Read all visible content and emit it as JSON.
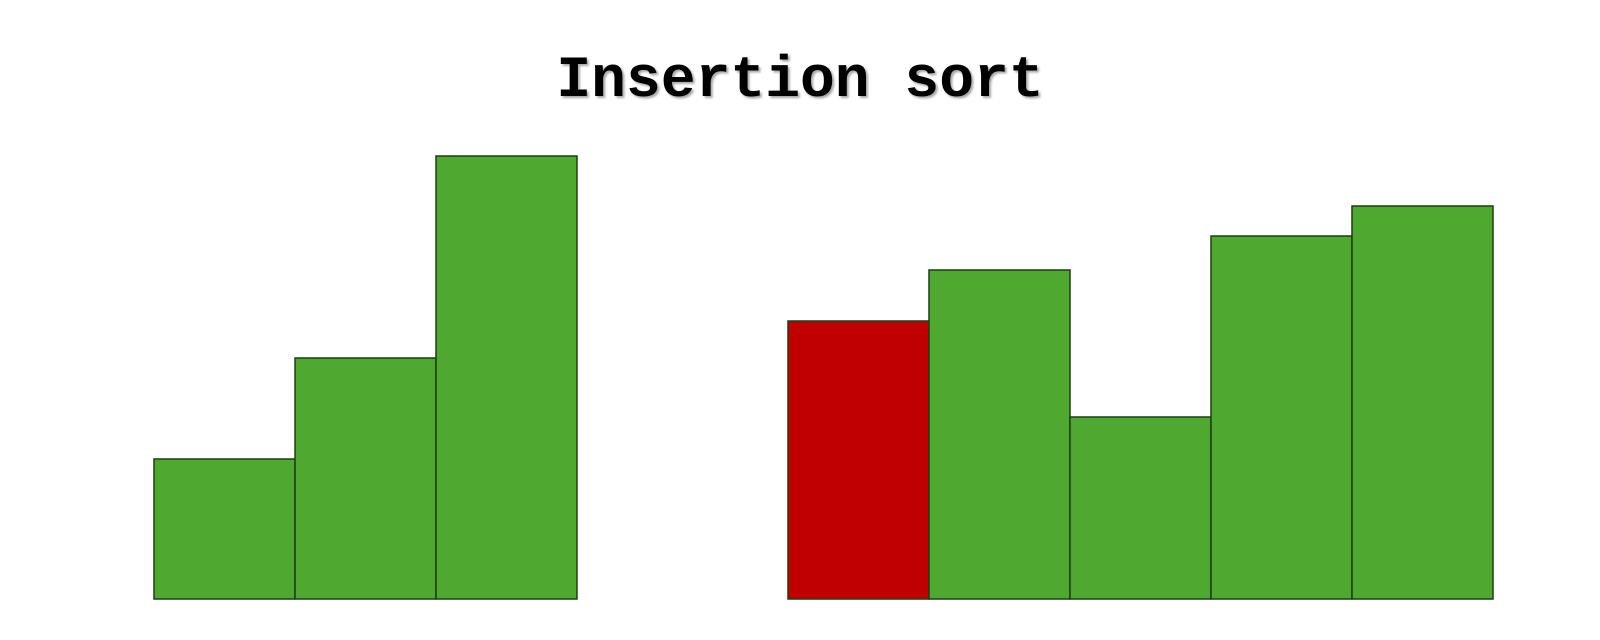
{
  "title": "Insertion sort",
  "colors": {
    "sorted_bar": "#4fa82f",
    "current_bar": "#c00000",
    "bar_border": "#1f3d12",
    "background": "#ffffff"
  },
  "groups": [
    {
      "name": "sorted-portion",
      "bars": [
        {
          "value": 140,
          "state": "sorted"
        },
        {
          "value": 241,
          "state": "sorted"
        },
        {
          "value": 443,
          "state": "sorted"
        }
      ]
    },
    {
      "name": "unsorted-portion",
      "bars": [
        {
          "value": 278,
          "state": "current"
        },
        {
          "value": 329,
          "state": "sorted"
        },
        {
          "value": 182,
          "state": "sorted"
        },
        {
          "value": 363,
          "state": "sorted"
        },
        {
          "value": 393,
          "state": "sorted"
        }
      ]
    }
  ]
}
